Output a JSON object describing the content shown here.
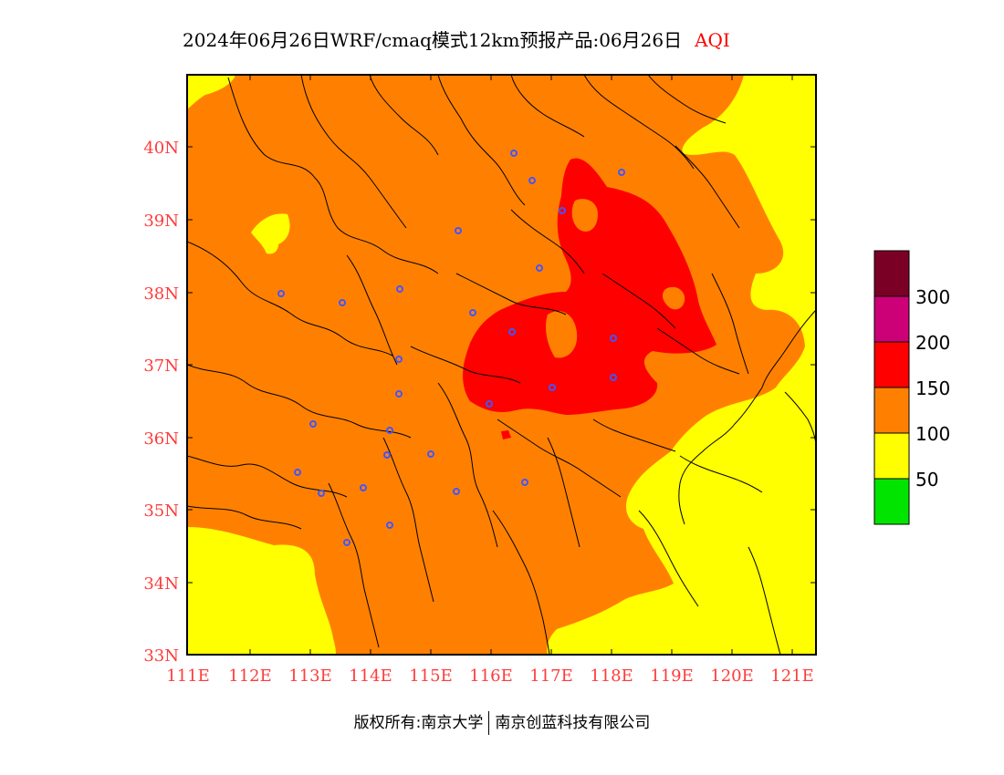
{
  "title": {
    "main": "2024年06月26日WRF/cmaq模式12km预报产品:06月26日",
    "variable": "AQI"
  },
  "axes": {
    "lat_labels": [
      "40N",
      "39N",
      "38N",
      "37N",
      "36N",
      "35N",
      "34N",
      "33N"
    ],
    "lon_labels": [
      "111E",
      "112E",
      "113E",
      "114E",
      "115E",
      "116E",
      "117E",
      "118E",
      "119E",
      "120E",
      "121E"
    ]
  },
  "legend": {
    "labels": [
      "300",
      "200",
      "150",
      "100",
      "50"
    ],
    "colors": [
      "#7a0026",
      "#cc0077",
      "#ff0000",
      "#ff8000",
      "#ffff00",
      "#00e400"
    ]
  },
  "colors": {
    "level_yellow": "#ffff00",
    "level_orange": "#ff8000",
    "level_red": "#ff0000",
    "station_marker": "#4455ff",
    "axis_label": "#ff3b3b"
  },
  "copyright": {
    "left": "版权所有:南京大学",
    "right": "南京创蓝科技有限公司"
  }
}
